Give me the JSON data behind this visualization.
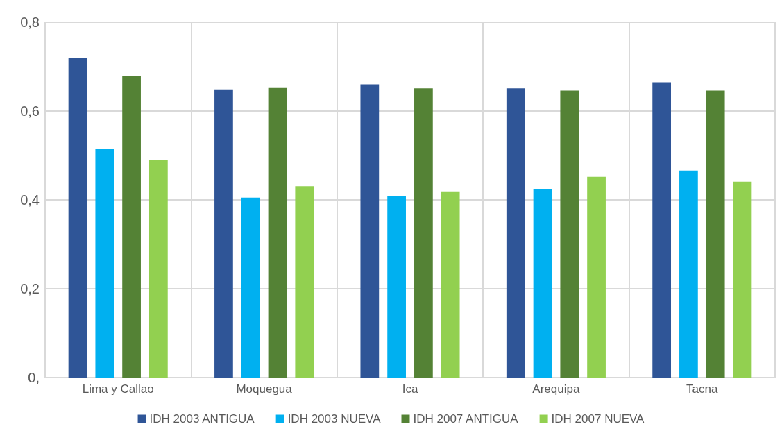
{
  "chart_data": {
    "type": "bar",
    "categories": [
      "Lima y Callao",
      "Moquegua",
      "Ica",
      "Arequipa",
      "Tacna"
    ],
    "series": [
      {
        "name": "IDH 2003 ANTIGUA",
        "color": "#2f5597",
        "values": [
          0.719,
          0.649,
          0.66,
          0.651,
          0.665
        ]
      },
      {
        "name": "IDH 2003 NUEVA",
        "color": "#00b0f0",
        "values": [
          0.514,
          0.405,
          0.409,
          0.425,
          0.466
        ]
      },
      {
        "name": "IDH 2007 ANTIGUA",
        "color": "#548235",
        "values": [
          0.678,
          0.652,
          0.651,
          0.646,
          0.646
        ]
      },
      {
        "name": "IDH 2007 NUEVA",
        "color": "#92d050",
        "values": [
          0.49,
          0.431,
          0.419,
          0.452,
          0.441
        ]
      }
    ],
    "ylim": [
      0,
      0.8
    ],
    "yticks": [
      {
        "value": 0,
        "label": "0,"
      },
      {
        "value": 0.2,
        "label": "0,2"
      },
      {
        "value": 0.4,
        "label": "0,4"
      },
      {
        "value": 0.6,
        "label": "0,6"
      },
      {
        "value": 0.8,
        "label": "0,8"
      }
    ],
    "grid": true,
    "legend": "bottom"
  }
}
